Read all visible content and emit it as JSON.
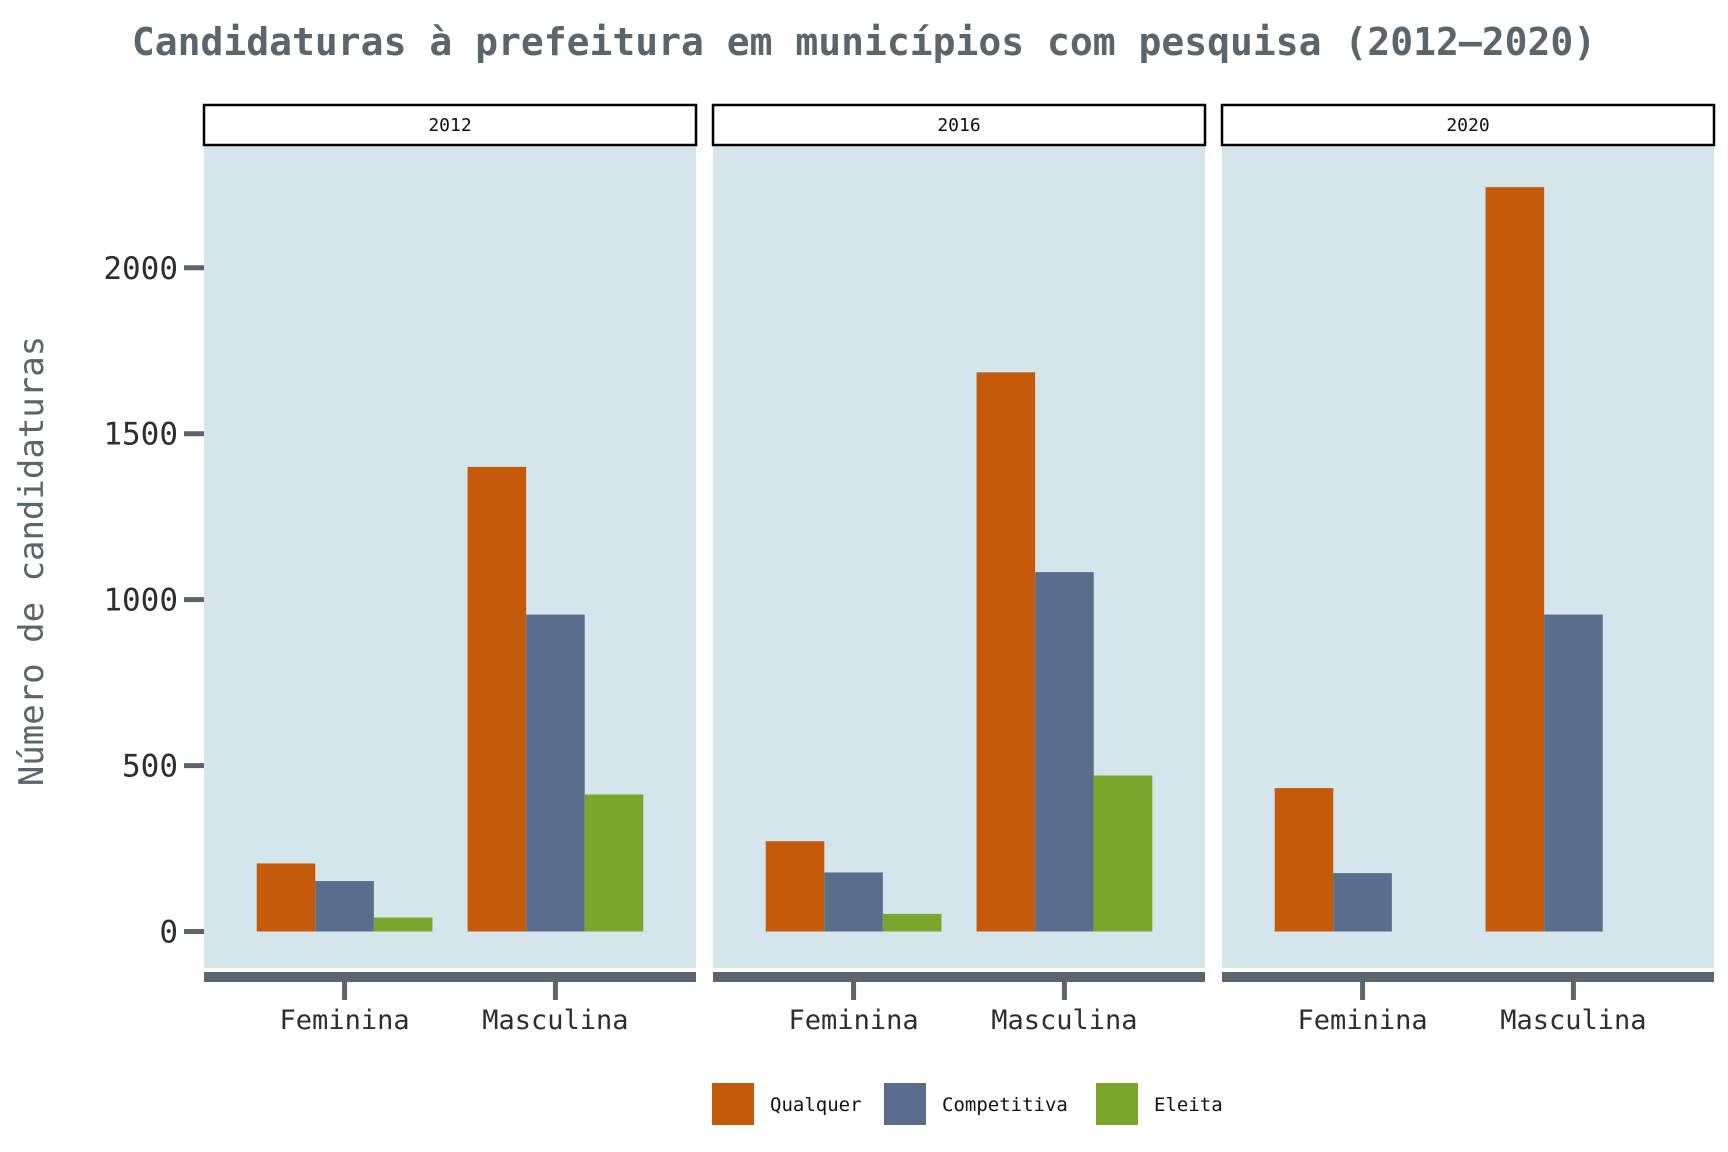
{
  "chart_data": {
    "type": "bar",
    "title": "Candidaturas à prefeitura em municípios com pesquisa (2012–2020)",
    "ylabel": "Número de candidaturas",
    "xlabel": "",
    "ylim": [
      -110,
      2370
    ],
    "yticks": [
      0,
      500,
      1000,
      1500,
      2000
    ],
    "ytick_labels": [
      "0",
      "500",
      "1000",
      "1500",
      "2000"
    ],
    "categories": [
      "Feminina",
      "Masculina"
    ],
    "series": [
      {
        "name": "Qualquer",
        "color": "#c55a0a"
      },
      {
        "name": "Competitiva",
        "color": "#5a6d8c"
      },
      {
        "name": "Eleita",
        "color": "#7ba62c"
      }
    ],
    "legend_position": "bottom",
    "panel_background": "#d4e5eb",
    "facets": [
      {
        "label": "2012",
        "values": {
          "Qualquer": [
            205,
            1400
          ],
          "Competitiva": [
            152,
            955
          ],
          "Eleita": [
            42,
            413
          ]
        }
      },
      {
        "label": "2016",
        "values": {
          "Qualquer": [
            272,
            1685
          ],
          "Competitiva": [
            178,
            1083
          ],
          "Eleita": [
            53,
            470
          ]
        }
      },
      {
        "label": "2020",
        "values": {
          "Qualquer": [
            432,
            2243
          ],
          "Competitiva": [
            176,
            955
          ],
          "Eleita": [
            0,
            0
          ]
        }
      }
    ]
  }
}
